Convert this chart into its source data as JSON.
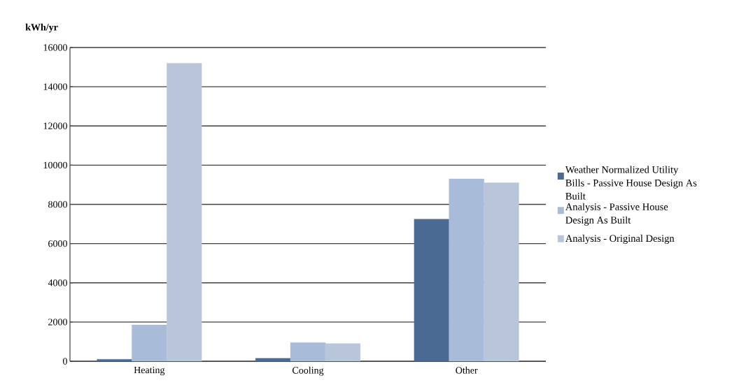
{
  "chart_data": {
    "type": "bar",
    "ylabel": "kWh/yr",
    "categories": [
      "Heating",
      "Cooling",
      "Other"
    ],
    "series": [
      {
        "name": "Weather Normalized Utility Bills -  Passive House Design As Built",
        "color": "#4a6a93",
        "values": [
          100,
          150,
          7250
        ]
      },
      {
        "name": "Analysis - Passive House Design As Built",
        "color": "#a8bcd9",
        "values": [
          1850,
          950,
          9300
        ]
      },
      {
        "name": "Analysis - Original Design",
        "color": "#b9c6da",
        "values": [
          15200,
          900,
          9100
        ]
      }
    ],
    "ylim": [
      0,
      16000
    ],
    "yticks": [
      0,
      2000,
      4000,
      6000,
      8000,
      10000,
      12000,
      14000,
      16000
    ],
    "grid": "y",
    "legend": "right"
  }
}
